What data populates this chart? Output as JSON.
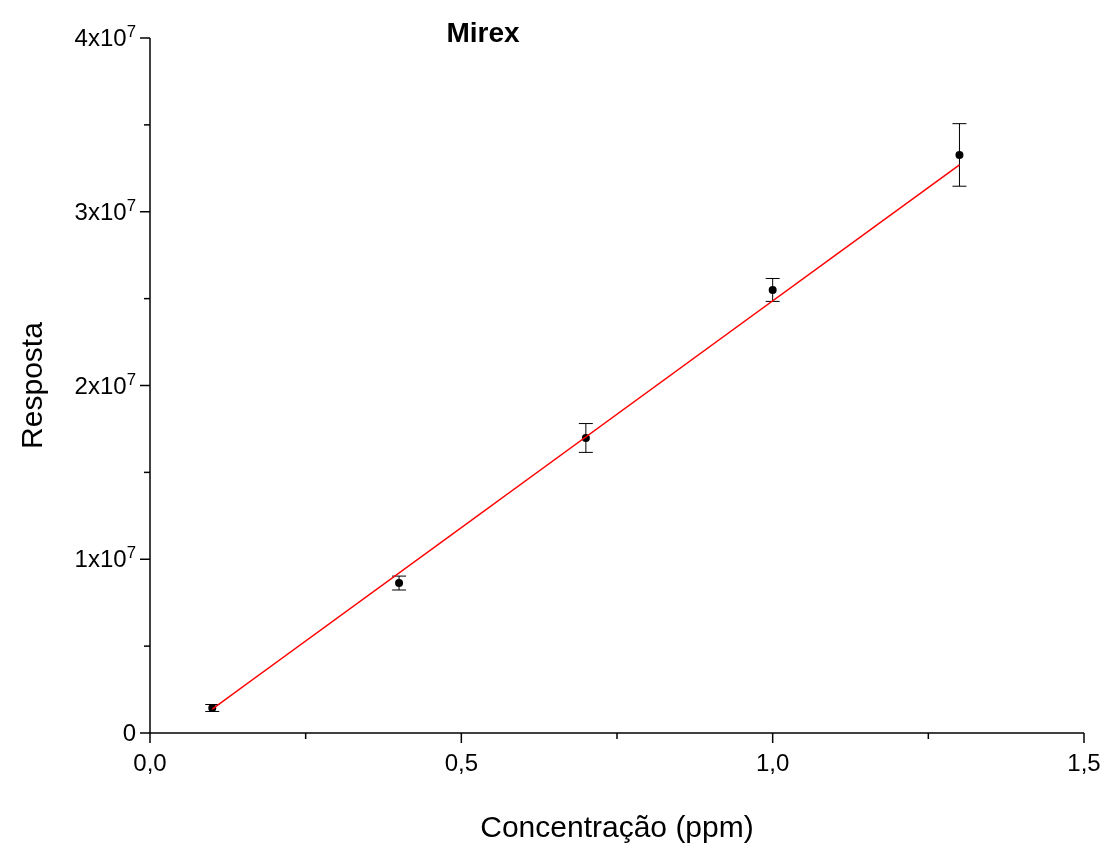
{
  "chart_data": {
    "type": "scatter",
    "title": "Mirex",
    "xlabel": "Concentração (ppm)",
    "ylabel": "Resposta",
    "xlim": [
      0,
      1.5
    ],
    "ylim": [
      0,
      40000000
    ],
    "xticks": [
      {
        "value": 0,
        "label": "0,0"
      },
      {
        "value": 0.25,
        "label": null
      },
      {
        "value": 0.5,
        "label": "0,5"
      },
      {
        "value": 0.75,
        "label": null
      },
      {
        "value": 1,
        "label": "1,0"
      },
      {
        "value": 1.25,
        "label": null
      },
      {
        "value": 1.5,
        "label": "1,5"
      }
    ],
    "yticks": [
      0,
      {
        "value": 5000000,
        "label": null
      },
      {
        "value": 10000000,
        "label": "1x10$^{7}$"
      },
      {
        "value": 15000000,
        "label": null
      },
      {
        "value": 20000000,
        "label": "2x10$^{7}$"
      },
      {
        "value": 25000000,
        "label": null
      },
      {
        "value": 30000000,
        "label": "3x10$^{7}$"
      },
      {
        "value": 35000000,
        "label": null
      },
      {
        "value": 40000000,
        "label": "4x10$^{7}$"
      }
    ],
    "grid": false,
    "series": [
      {
        "color": "#000000",
        "marker": "circle",
        "x": [
          0.1,
          0.4,
          0.7,
          1.0,
          1.3
        ],
        "values": [
          1440000,
          8630000,
          16980000,
          25500000,
          33270000
        ],
        "errors": [
          200000,
          400000,
          830000,
          660000,
          1800000
        ]
      },
      {
        "type": "line",
        "color": "#ff0000",
        "line_style": "solid",
        "marker": "none",
        "x": [
          0.1,
          1.3
        ],
        "values": [
          1380000,
          32700000
        ]
      }
    ]
  }
}
